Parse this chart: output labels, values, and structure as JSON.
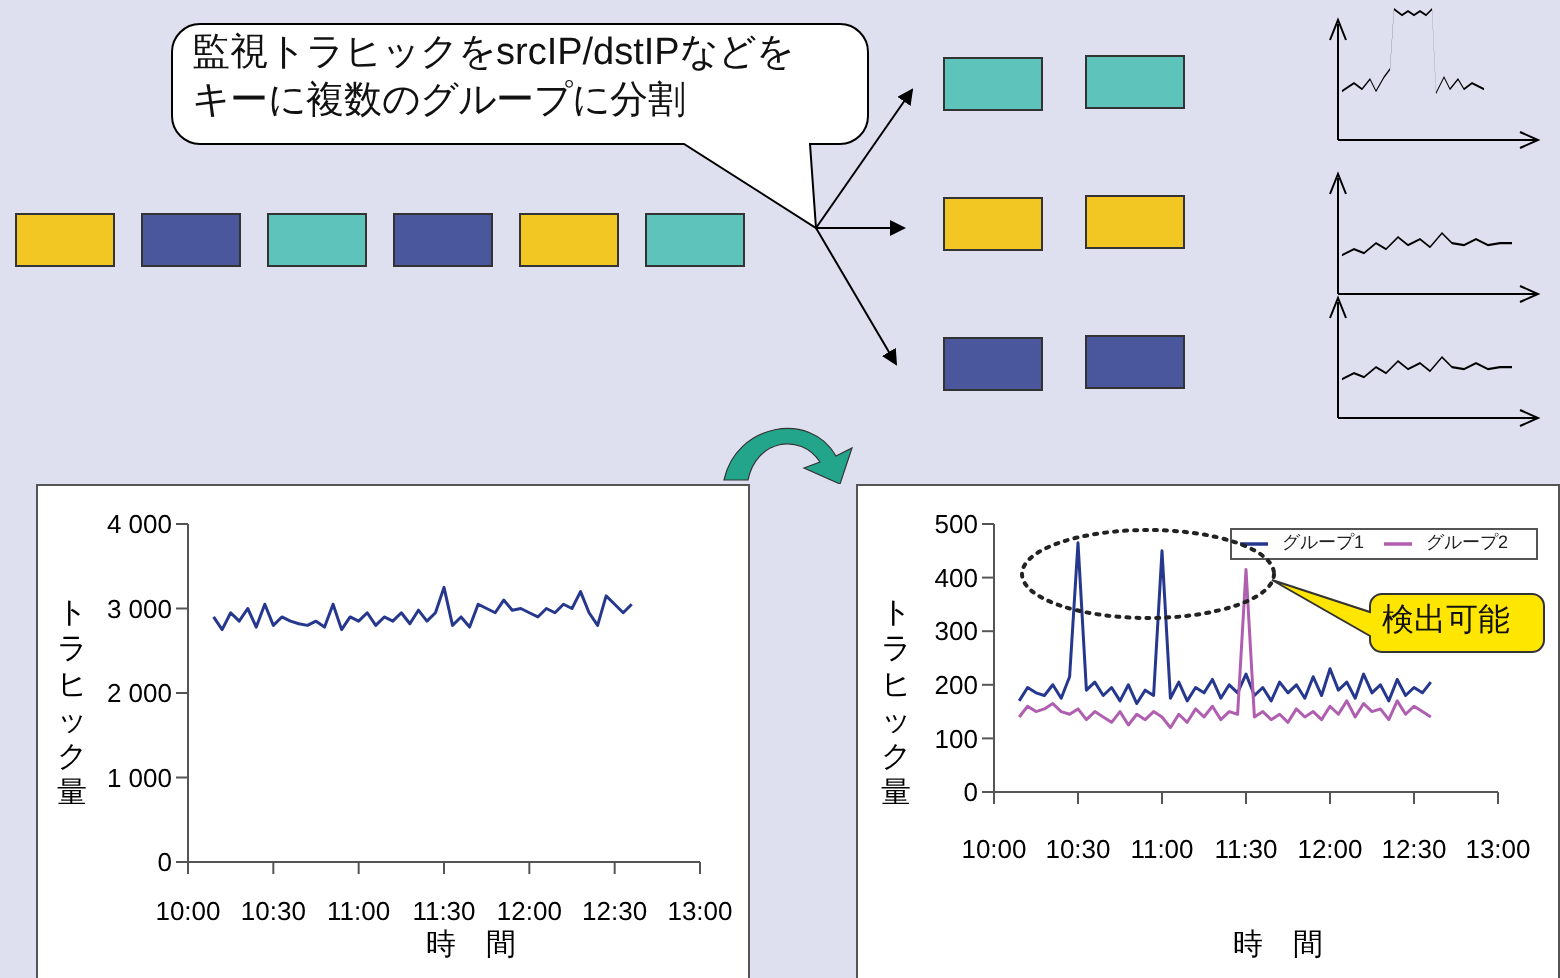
{
  "chart_data": [
    {
      "type": "line",
      "annotations": [
        "監視トラヒックをsrcIP/dstIPなどをキーに複数のグループに分割"
      ],
      "xlabel": "時　間",
      "ylabel": "トラヒック量",
      "marker": "none",
      "xlim": [
        10,
        13
      ],
      "xticks": [
        {
          "value": 10,
          "label": "10:00"
        },
        {
          "value": 10.5,
          "label": "10:30"
        },
        {
          "value": 11,
          "label": "11:00"
        },
        {
          "value": 11.5,
          "label": "11:30"
        },
        {
          "value": 12,
          "label": "12:00"
        },
        {
          "value": 12.5,
          "label": "12:30"
        },
        {
          "value": 13,
          "label": "13:00"
        }
      ],
      "ylim": [
        0,
        4000
      ],
      "yticks": [
        0,
        {
          "value": 1000,
          "label": "1 000"
        },
        {
          "value": 2000,
          "label": "2 000"
        },
        {
          "value": 3000,
          "label": "3 000"
        },
        {
          "value": 4000,
          "label": "4 000"
        }
      ],
      "x": [
        10.15,
        10.2,
        10.25,
        10.3,
        10.35,
        10.4,
        10.45,
        10.5,
        10.55,
        10.6,
        10.65,
        10.7,
        10.75,
        10.8,
        10.85,
        10.9,
        10.95,
        11,
        11.05,
        11.1,
        11.15,
        11.2,
        11.25,
        11.3,
        11.35,
        11.4,
        11.45,
        11.5,
        11.55,
        11.6,
        11.65,
        11.7,
        11.75,
        11.8,
        11.85,
        11.9,
        11.95,
        12,
        12.05,
        12.1,
        12.15,
        12.2,
        12.25,
        12.3,
        12.35,
        12.4,
        12.45,
        12.5,
        12.55,
        12.6
      ],
      "series": [
        {
          "color": "#26388e",
          "values": [
            2900,
            2750,
            2950,
            2850,
            3000,
            2780,
            3050,
            2800,
            2900,
            2850,
            2820,
            2800,
            2850,
            2780,
            3050,
            2750,
            2900,
            2850,
            2950,
            2800,
            2900,
            2850,
            2950,
            2820,
            2980,
            2850,
            2950,
            3250,
            2800,
            2900,
            2780,
            3050,
            3000,
            2950,
            3100,
            2980,
            3000,
            2950,
            2900,
            3000,
            2950,
            3050,
            3000,
            3200,
            2950,
            2800,
            3150,
            3050,
            2950,
            3050
          ]
        }
      ]
    },
    {
      "type": "line",
      "annotations": [
        "検出可能"
      ],
      "xlabel": "時　間",
      "ylabel": "トラヒック量",
      "marker": "none",
      "legend": "top right",
      "xlim": [
        10,
        13
      ],
      "xticks": [
        {
          "value": 10,
          "label": "10:00"
        },
        {
          "value": 10.5,
          "label": "10:30"
        },
        {
          "value": 11,
          "label": "11:00"
        },
        {
          "value": 11.5,
          "label": "11:30"
        },
        {
          "value": 12,
          "label": "12:00"
        },
        {
          "value": 12.5,
          "label": "12:30"
        },
        {
          "value": 13,
          "label": "13:00"
        }
      ],
      "ylim": [
        0,
        500
      ],
      "yticks": [
        0,
        100,
        200,
        300,
        400,
        500
      ],
      "x": [
        10.15,
        10.2,
        10.25,
        10.3,
        10.35,
        10.4,
        10.45,
        10.5,
        10.55,
        10.6,
        10.65,
        10.7,
        10.75,
        10.8,
        10.85,
        10.9,
        10.95,
        11,
        11.05,
        11.1,
        11.15,
        11.2,
        11.25,
        11.3,
        11.35,
        11.4,
        11.45,
        11.5,
        11.55,
        11.6,
        11.65,
        11.7,
        11.75,
        11.8,
        11.85,
        11.9,
        11.95,
        12,
        12.05,
        12.1,
        12.15,
        12.2,
        12.25,
        12.3,
        12.35,
        12.4,
        12.45,
        12.5,
        12.55,
        12.6
      ],
      "series": [
        {
          "name": "グループ1",
          "color": "#26388e",
          "values": [
            170,
            195,
            185,
            180,
            200,
            175,
            215,
            465,
            190,
            205,
            180,
            195,
            170,
            200,
            165,
            190,
            180,
            450,
            175,
            205,
            170,
            195,
            185,
            210,
            175,
            200,
            185,
            220,
            180,
            195,
            170,
            205,
            185,
            200,
            175,
            215,
            180,
            230,
            190,
            205,
            175,
            220,
            185,
            200,
            170,
            210,
            180,
            195,
            185,
            205
          ]
        },
        {
          "name": "グループ2",
          "color": "#b05fb0",
          "values": [
            140,
            160,
            150,
            155,
            165,
            150,
            145,
            155,
            135,
            150,
            140,
            130,
            150,
            125,
            145,
            135,
            150,
            140,
            120,
            145,
            130,
            155,
            140,
            160,
            135,
            150,
            145,
            415,
            140,
            150,
            135,
            145,
            130,
            155,
            140,
            150,
            135,
            160,
            145,
            170,
            140,
            165,
            150,
            155,
            135,
            170,
            145,
            160,
            150,
            140
          ]
        }
      ]
    }
  ]
}
